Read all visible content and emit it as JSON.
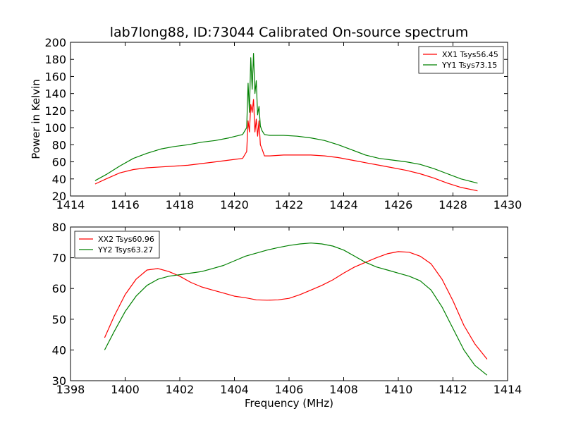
{
  "chart_data": [
    {
      "type": "line",
      "title": "lab7long88, ID:73044 Calibrated On-source spectrum",
      "xlabel": "",
      "ylabel": "Power in Kelvin",
      "xlim": [
        1414,
        1430
      ],
      "ylim": [
        20,
        200
      ],
      "xticks": [
        1414,
        1416,
        1418,
        1420,
        1422,
        1424,
        1426,
        1428,
        1430
      ],
      "yticks": [
        20,
        40,
        60,
        80,
        100,
        120,
        140,
        160,
        180,
        200
      ],
      "legend_position": "top-right",
      "grid": false,
      "series": [
        {
          "name": "XX1 Tsys56.45",
          "color": "#ff0000",
          "x": [
            1414.9,
            1415.3,
            1415.8,
            1416.3,
            1416.8,
            1417.3,
            1417.8,
            1418.3,
            1418.8,
            1419.3,
            1419.8,
            1420.3,
            1420.45,
            1420.5,
            1420.55,
            1420.6,
            1420.65,
            1420.7,
            1420.75,
            1420.8,
            1420.85,
            1420.9,
            1420.95,
            1421.0,
            1421.1,
            1421.3,
            1421.8,
            1422.3,
            1422.8,
            1423.3,
            1423.8,
            1424.3,
            1424.8,
            1425.3,
            1425.8,
            1426.3,
            1426.8,
            1427.3,
            1427.8,
            1428.3,
            1428.9
          ],
          "y": [
            34,
            40,
            47,
            51,
            53,
            54,
            55,
            56,
            58,
            60,
            62,
            64,
            72,
            108,
            95,
            127,
            118,
            133,
            95,
            110,
            90,
            108,
            80,
            76,
            67,
            67,
            68,
            68,
            68,
            67,
            65,
            62,
            59,
            56,
            53,
            50,
            46,
            41,
            35,
            30,
            26
          ]
        },
        {
          "name": "YY1 Tsys73.15",
          "color": "#008000",
          "x": [
            1414.9,
            1415.3,
            1415.8,
            1416.3,
            1416.8,
            1417.3,
            1417.8,
            1418.3,
            1418.8,
            1419.3,
            1419.8,
            1420.3,
            1420.45,
            1420.5,
            1420.55,
            1420.6,
            1420.65,
            1420.7,
            1420.75,
            1420.8,
            1420.85,
            1420.9,
            1420.95,
            1421.0,
            1421.1,
            1421.3,
            1421.8,
            1422.3,
            1422.8,
            1423.3,
            1423.8,
            1424.3,
            1424.8,
            1425.3,
            1425.8,
            1426.3,
            1426.8,
            1427.3,
            1427.8,
            1428.3,
            1428.9
          ],
          "y": [
            38,
            45,
            55,
            64,
            70,
            75,
            78,
            80,
            83,
            85,
            88,
            92,
            100,
            152,
            118,
            182,
            145,
            187,
            140,
            155,
            115,
            125,
            102,
            97,
            92,
            91,
            91,
            90,
            88,
            85,
            80,
            74,
            68,
            64,
            62,
            60,
            57,
            52,
            46,
            40,
            35
          ]
        }
      ]
    },
    {
      "type": "line",
      "title": "",
      "xlabel": "Frequency (MHz)",
      "ylabel": "",
      "xlim": [
        1398,
        1414
      ],
      "ylim": [
        30,
        80
      ],
      "xticks": [
        1398,
        1400,
        1402,
        1404,
        1406,
        1408,
        1410,
        1412,
        1414
      ],
      "yticks": [
        30,
        40,
        50,
        60,
        70,
        80
      ],
      "legend_position": "top-left",
      "grid": false,
      "series": [
        {
          "name": "XX2 Tsys60.96",
          "color": "#ff0000",
          "x": [
            1399.25,
            1399.6,
            1400.0,
            1400.4,
            1400.8,
            1401.2,
            1401.6,
            1402.0,
            1402.4,
            1402.8,
            1403.2,
            1403.6,
            1404.0,
            1404.4,
            1404.8,
            1405.2,
            1405.6,
            1406.0,
            1406.4,
            1406.8,
            1407.2,
            1407.6,
            1408.0,
            1408.4,
            1408.8,
            1409.2,
            1409.6,
            1410.0,
            1410.4,
            1410.8,
            1411.2,
            1411.6,
            1412.0,
            1412.4,
            1412.8,
            1413.25
          ],
          "y": [
            44,
            51,
            58,
            63,
            66,
            66.5,
            65.5,
            64,
            62,
            60.5,
            59.5,
            58.5,
            57.5,
            57,
            56.3,
            56.2,
            56.3,
            56.8,
            58,
            59.5,
            61,
            62.8,
            65,
            67,
            68.5,
            70,
            71.3,
            72,
            71.8,
            70.5,
            68,
            63,
            56,
            48,
            42,
            37
          ]
        },
        {
          "name": "YY2 Tsys63.27",
          "color": "#008000",
          "x": [
            1399.25,
            1399.6,
            1400.0,
            1400.4,
            1400.8,
            1401.2,
            1401.6,
            1402.0,
            1402.4,
            1402.8,
            1403.2,
            1403.6,
            1404.0,
            1404.4,
            1404.8,
            1405.2,
            1405.6,
            1406.0,
            1406.4,
            1406.8,
            1407.2,
            1407.6,
            1408.0,
            1408.4,
            1408.8,
            1409.2,
            1409.6,
            1410.0,
            1410.4,
            1410.8,
            1411.2,
            1411.6,
            1412.0,
            1412.4,
            1412.8,
            1413.25
          ],
          "y": [
            40,
            46,
            52.5,
            57.5,
            61,
            63,
            64,
            64.5,
            65,
            65.5,
            66.5,
            67.5,
            69,
            70.5,
            71.5,
            72.5,
            73.3,
            74,
            74.5,
            74.8,
            74.5,
            73.8,
            72.5,
            70.5,
            68.5,
            67,
            66,
            65,
            64,
            62.5,
            59.5,
            54,
            47,
            40,
            35,
            31.8
          ]
        }
      ]
    }
  ]
}
